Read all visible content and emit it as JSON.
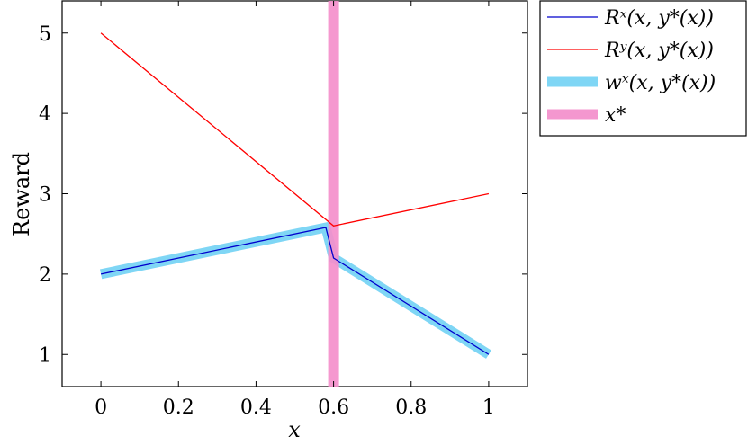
{
  "chart_data": {
    "type": "line",
    "title": "",
    "xlabel": "x",
    "ylabel": "Reward",
    "xlim": [
      -0.1,
      1.1
    ],
    "ylim": [
      0.6,
      5.4
    ],
    "xticks": [
      0,
      0.2,
      0.4,
      0.6,
      0.8,
      1
    ],
    "xtick_labels": [
      "0",
      "0.2",
      "0.4",
      "0.6",
      "0.8",
      "1"
    ],
    "yticks": [
      1,
      2,
      3,
      4,
      5
    ],
    "ytick_labels": [
      "1",
      "2",
      "3",
      "4",
      "5"
    ],
    "grid": false,
    "legend_position": "outside-top-right",
    "series": [
      {
        "name": "R^x(x, y*(x))",
        "legend_label": "Rˣ(x, y*(x))",
        "color": "#0000cc",
        "style": "thin",
        "x": [
          0,
          0.58,
          0.6,
          1
        ],
        "y": [
          2.0,
          2.58,
          2.2,
          1.0
        ]
      },
      {
        "name": "R^y(x, y*(x))",
        "legend_label": "Rʸ(x, y*(x))",
        "color": "#ff0000",
        "style": "thin",
        "x": [
          0,
          0.6,
          1
        ],
        "y": [
          5.0,
          2.6,
          3.0
        ]
      },
      {
        "name": "w^x(x, y*(x))",
        "legend_label": "wˣ(x, y*(x))",
        "color": "#7fd6f5",
        "style": "thick",
        "x": [
          0,
          0.58,
          0.6,
          1
        ],
        "y": [
          2.0,
          2.58,
          2.2,
          1.0
        ]
      },
      {
        "name": "x*",
        "legend_label": "x*",
        "color": "#f48fcb",
        "style": "vertical-band",
        "x": [
          0.6
        ]
      }
    ]
  }
}
